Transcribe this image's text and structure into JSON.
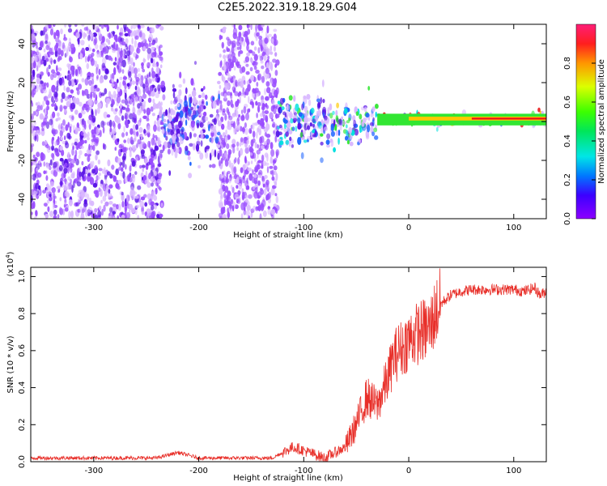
{
  "title": "C2E5.2022.319.18.29.G04",
  "colors": {
    "snr_line": "#e8302a",
    "spectrogram_low": "#7a28f0",
    "spectrogram_faint": "#d9b8ff",
    "ridge_green": "#32e632",
    "ridge_red": "#e81818",
    "axis": "#000000"
  },
  "chart_data": [
    {
      "type": "heatmap",
      "title": "",
      "xlabel": "Height of straight line (km)",
      "ylabel": "Frequency (Hz)",
      "xlim": [
        -360,
        131
      ],
      "ylim": [
        -50,
        50
      ],
      "xticks": [
        -300,
        -200,
        -100,
        0,
        100
      ],
      "xtick_labels": [
        "-300",
        "-200",
        "-100",
        "0",
        "100"
      ],
      "yticks": [
        -40,
        -20,
        0,
        20,
        40
      ],
      "ytick_labels": [
        "-40",
        "-20",
        "0",
        "20",
        "40"
      ],
      "colorbar": {
        "label": "Normalized spectral amplitude",
        "range": [
          0,
          1
        ],
        "ticks": [
          0.0,
          0.2,
          0.4,
          0.6,
          0.8
        ],
        "tick_labels": [
          "0.0",
          "0.2",
          "0.4",
          "0.6",
          "0.8"
        ],
        "colormap": "rainbow (purple to red)"
      },
      "regions": [
        {
          "x_from": -360,
          "x_to": -235,
          "freq_spread": [
            -50,
            50
          ],
          "amplitude": 0.15
        },
        {
          "x_from": -235,
          "x_to": -180,
          "freq_spread": [
            -20,
            20
          ],
          "amplitude": 0.3
        },
        {
          "x_from": -180,
          "x_to": -125,
          "freq_spread": [
            -50,
            50
          ],
          "amplitude": 0.12
        },
        {
          "x_from": -125,
          "x_to": -80,
          "freq_spread": [
            -15,
            15
          ],
          "amplitude": 0.5
        },
        {
          "x_from": -80,
          "x_to": -30,
          "freq_spread": [
            -12,
            8
          ],
          "amplitude": 0.6
        },
        {
          "x_from": -30,
          "x_to": 131,
          "freq_spread": [
            -2,
            4
          ],
          "amplitude": 0.9
        }
      ]
    },
    {
      "type": "line",
      "title": "",
      "xlabel": "Height of straight line (km)",
      "ylabel": "SNR (10 * v/v)",
      "y_multiplier_label": "(x10",
      "y_multiplier_exp": "4",
      "y_multiplier_close": ")",
      "xlim": [
        -360,
        131
      ],
      "ylim": [
        0,
        1.05
      ],
      "xticks": [
        -300,
        -200,
        -100,
        0,
        100
      ],
      "xtick_labels": [
        "-300",
        "-200",
        "-100",
        "0",
        "100"
      ],
      "yticks": [
        0.0,
        0.2,
        0.4,
        0.6,
        0.8,
        1.0
      ],
      "ytick_labels": [
        "0.0",
        "0.2",
        "0.4",
        "0.6",
        "0.8",
        "1.0"
      ],
      "series": [
        {
          "x": [
            -360,
            -300,
            -240,
            -220,
            -200,
            -130,
            -110,
            -100,
            -80,
            -60,
            -50,
            -40,
            -30,
            -20,
            -15,
            -10,
            -5,
            0,
            10,
            20,
            25,
            30,
            40,
            50,
            60,
            80,
            100,
            110,
            120,
            125,
            131
          ],
          "y": [
            0.02,
            0.02,
            0.02,
            0.05,
            0.02,
            0.02,
            0.08,
            0.06,
            0.02,
            0.08,
            0.2,
            0.35,
            0.3,
            0.45,
            0.55,
            0.6,
            0.62,
            0.66,
            0.7,
            0.72,
            0.8,
            0.85,
            0.9,
            0.92,
            0.93,
            0.93,
            0.93,
            0.92,
            0.94,
            0.9,
            0.92
          ]
        }
      ]
    }
  ]
}
